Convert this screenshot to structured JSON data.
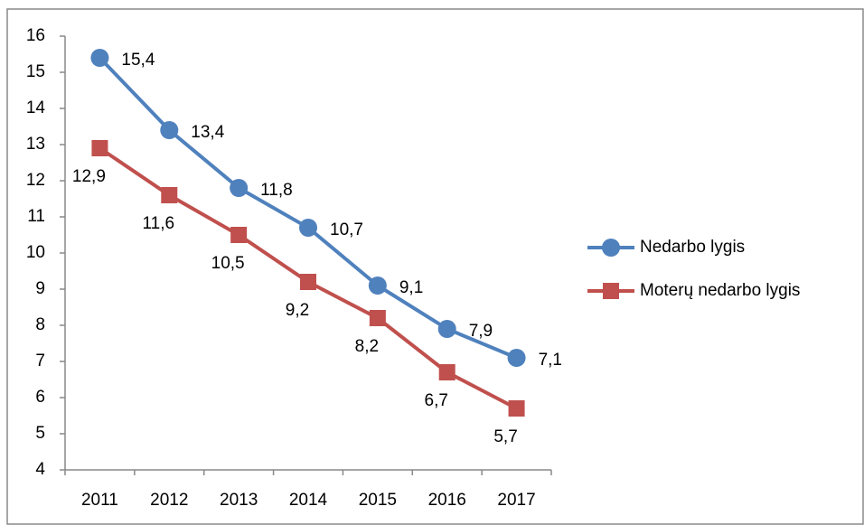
{
  "chart_data": {
    "type": "line",
    "categories": [
      "2011",
      "2012",
      "2013",
      "2014",
      "2015",
      "2016",
      "2017"
    ],
    "series": [
      {
        "name": "Nedarbo lygis",
        "color": "#4f81bd",
        "marker": "circle",
        "values": [
          15.4,
          13.4,
          11.8,
          10.7,
          9.1,
          7.9,
          7.1
        ],
        "value_labels": [
          "15,4",
          "13,4",
          "11,8",
          "10,7",
          "9,1",
          "7,9",
          "7,1"
        ]
      },
      {
        "name": "Moterų nedarbo lygis",
        "color": "#c0504d",
        "marker": "square",
        "values": [
          12.9,
          11.6,
          10.5,
          9.2,
          8.2,
          6.7,
          5.7
        ],
        "value_labels": [
          "12,9",
          "11,6",
          "10,5",
          "9,2",
          "8,2",
          "6,7",
          "5,7"
        ]
      }
    ],
    "ylim": [
      4,
      16
    ],
    "yticks": [
      4,
      5,
      6,
      7,
      8,
      9,
      10,
      11,
      12,
      13,
      14,
      15,
      16
    ],
    "grid": false,
    "legend": "right"
  }
}
